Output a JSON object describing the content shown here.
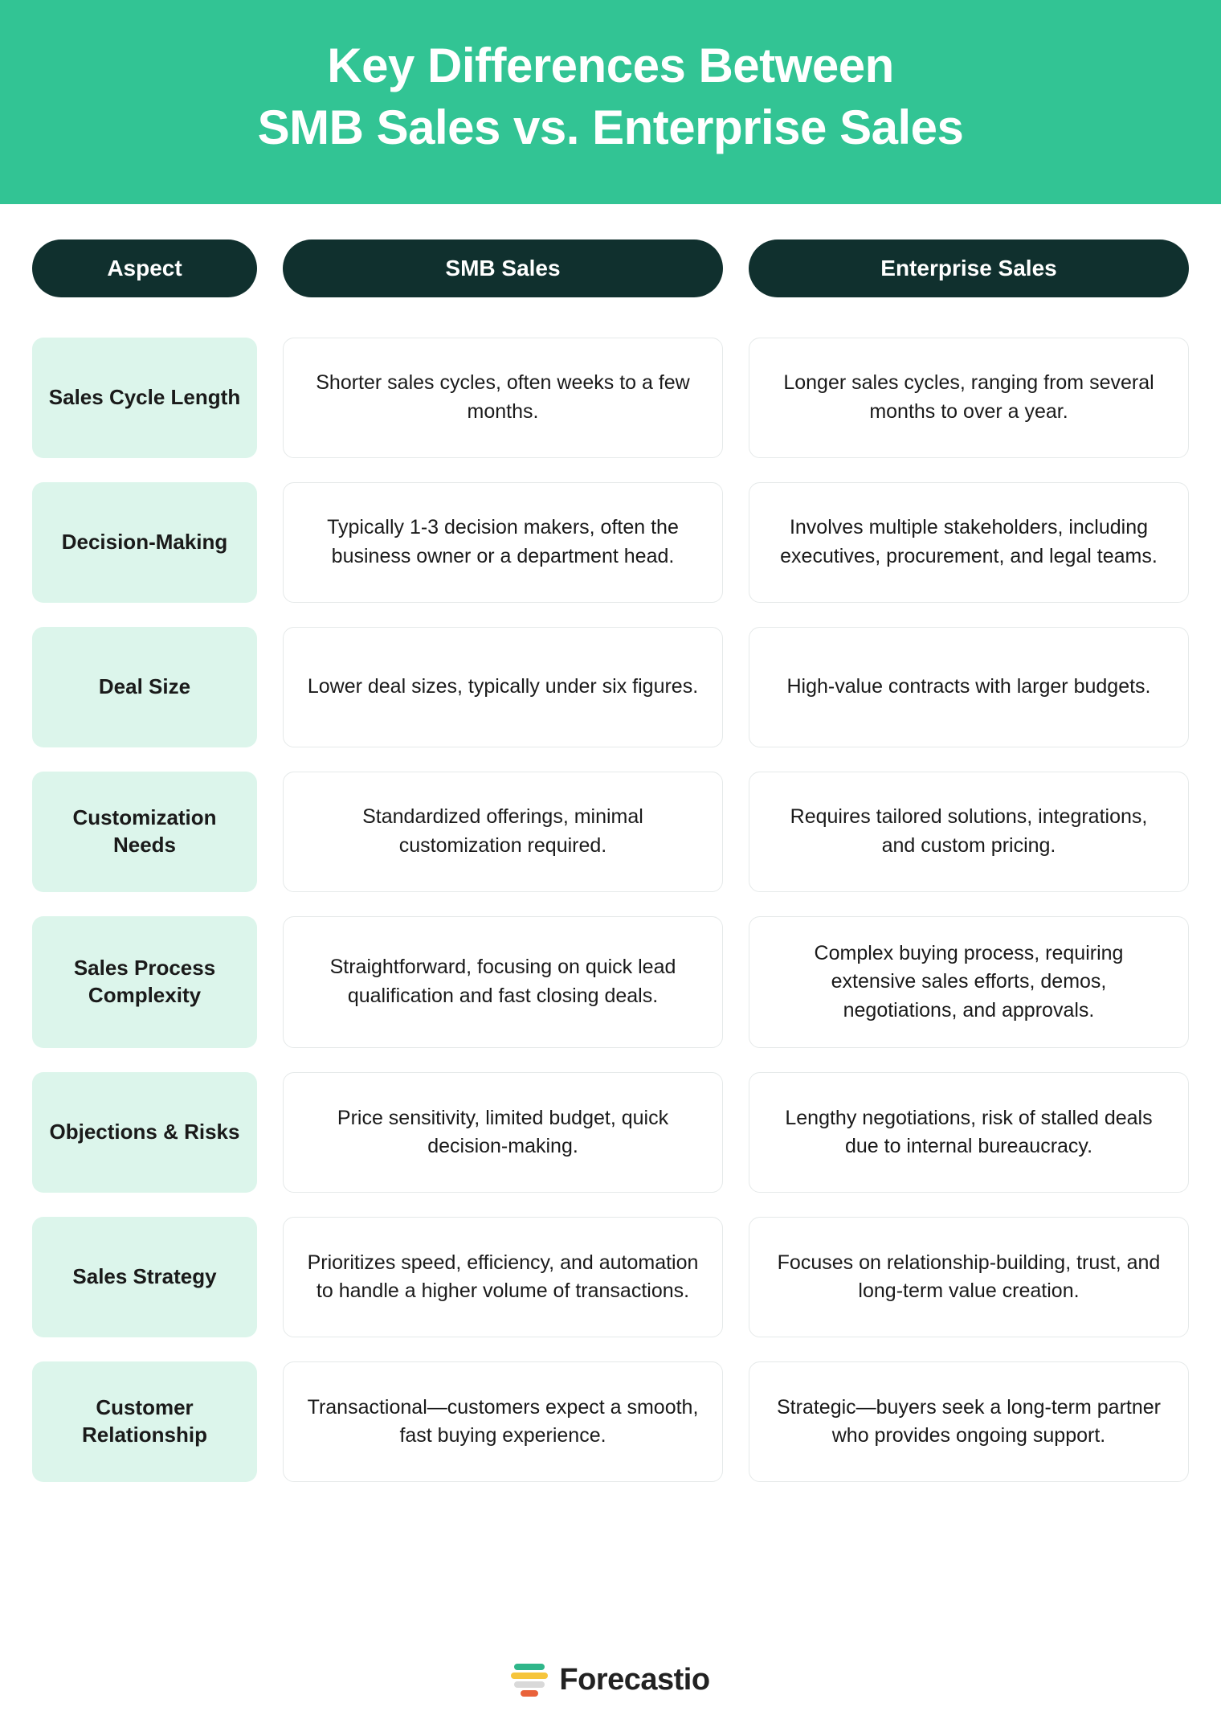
{
  "banner": {
    "title_line1": "Key Differences Between",
    "title_line2": "SMB Sales vs. Enterprise Sales"
  },
  "headers": {
    "aspect": "Aspect",
    "smb": "SMB Sales",
    "enterprise": "Enterprise Sales"
  },
  "rows": [
    {
      "aspect": "Sales Cycle Length",
      "smb": "Shorter sales cycles, often weeks to a few months.",
      "enterprise": "Longer sales cycles, ranging from several months to over a year."
    },
    {
      "aspect": "Decision-Making",
      "smb": "Typically 1-3 decision makers, often the business owner or a department head.",
      "enterprise": "Involves multiple stakeholders, including executives, procurement, and legal teams."
    },
    {
      "aspect": "Deal Size",
      "smb": "Lower deal sizes, typically under six figures.",
      "enterprise": "High-value contracts with larger budgets."
    },
    {
      "aspect": "Customization Needs",
      "smb": "Standardized offerings, minimal customization required.",
      "enterprise": "Requires tailored solutions, integrations, and custom pricing."
    },
    {
      "aspect": "Sales Process Complexity",
      "smb": "Straightforward, focusing on quick lead qualification and fast closing deals.",
      "enterprise": "Complex buying process, requiring extensive sales efforts, demos, negotiations, and approvals."
    },
    {
      "aspect": "Objections & Risks",
      "smb": "Price sensitivity, limited budget, quick decision-making.",
      "enterprise": "Lengthy negotiations, risk of stalled deals due to internal bureaucracy."
    },
    {
      "aspect": "Sales Strategy",
      "smb": "Prioritizes speed, efficiency, and automation to handle a higher volume of transactions.",
      "enterprise": "Focuses on relationship-building, trust, and long-term value creation."
    },
    {
      "aspect": "Customer Relationship",
      "smb": "Transactional—customers expect a smooth, fast buying experience.",
      "enterprise": "Strategic—buyers seek a long-term partner who provides ongoing support."
    }
  ],
  "footer": {
    "brand": "Forecastio"
  },
  "colors": {
    "banner_bg": "#32c494",
    "header_pill_bg": "#10302e",
    "header_pill_fg": "#ffffff",
    "aspect_bg": "#dcf5eb",
    "cell_border": "#e5e9e9",
    "text": "#1a1a1a",
    "logo_green": "#2fb68a",
    "logo_yellow": "#f6c53d",
    "logo_grey": "#d9d9d9",
    "logo_orange": "#e9623a"
  }
}
